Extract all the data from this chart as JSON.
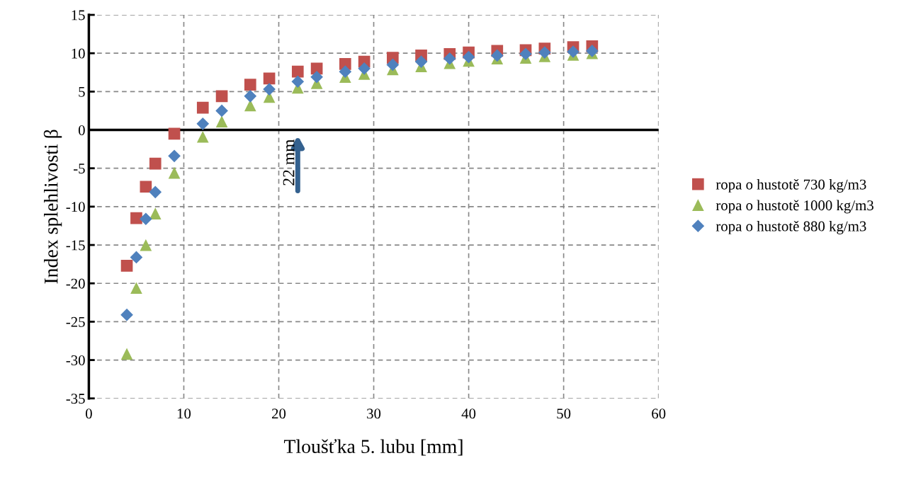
{
  "chart_data": {
    "type": "scatter",
    "xlabel": "Tloušťka 5. lubu [mm]",
    "ylabel": "Index splehlivosti β",
    "x": [
      4,
      5,
      6,
      7,
      9,
      12,
      14,
      17,
      19,
      22,
      24,
      27,
      29,
      32,
      35,
      38,
      40,
      43,
      46,
      48,
      51,
      53
    ],
    "series": [
      {
        "name": "ropa o hustotě 730 kg/m3",
        "color": "#c0504d",
        "marker": "square",
        "values": [
          -17.7,
          -11.5,
          -7.4,
          -4.4,
          -0.5,
          2.9,
          4.4,
          5.9,
          6.7,
          7.6,
          8.0,
          8.6,
          8.9,
          9.4,
          9.7,
          9.9,
          10.1,
          10.3,
          10.4,
          10.6,
          10.8,
          10.9
        ]
      },
      {
        "name": "ropa o hustotě 1000 kg/m3",
        "color": "#9bbb59",
        "marker": "triangle",
        "values": [
          -29.2,
          -20.6,
          -15.0,
          -10.9,
          -5.6,
          -0.9,
          1.1,
          3.2,
          4.3,
          5.5,
          6.1,
          6.9,
          7.3,
          7.9,
          8.3,
          8.7,
          9.0,
          9.3,
          9.4,
          9.6,
          9.8,
          10.0
        ]
      },
      {
        "name": "ropa o hustotě 880 kg/m3",
        "color": "#4f81bd",
        "marker": "diamond",
        "values": [
          -24.1,
          -16.6,
          -11.6,
          -8.1,
          -3.4,
          0.8,
          2.5,
          4.4,
          5.3,
          6.3,
          6.9,
          7.6,
          8.0,
          8.5,
          8.9,
          9.3,
          9.5,
          9.7,
          9.9,
          10.1,
          10.2,
          10.3
        ]
      }
    ],
    "annotations": [
      "22 mm"
    ],
    "ref_lines": [
      {
        "axis": "y",
        "value": 0,
        "color": "#000000"
      }
    ],
    "xlim": [
      0,
      60
    ],
    "xticks": [
      0,
      10,
      20,
      30,
      40,
      50,
      60
    ],
    "ylim": [
      -35,
      15
    ],
    "yticks": [
      -35,
      -30,
      -25,
      -20,
      -15,
      -10,
      -5,
      0,
      5,
      10,
      15
    ],
    "grid": true,
    "legend": "right"
  }
}
